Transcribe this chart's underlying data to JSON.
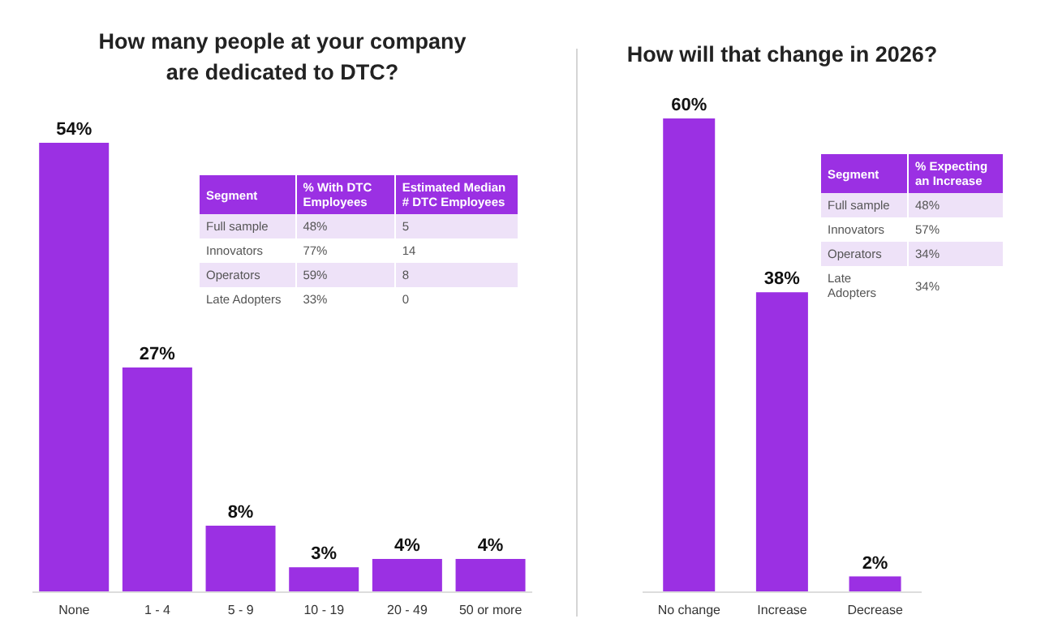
{
  "chart_data": [
    {
      "type": "bar",
      "title": "How many people at your company are dedicated to DTC?",
      "categories": [
        "None",
        "1 - 4",
        "5 - 9",
        "10 - 19",
        "20 - 49",
        "50 or more"
      ],
      "values": [
        54,
        27,
        8,
        3,
        4,
        4
      ],
      "value_labels": [
        "54%",
        "27%",
        "8%",
        "3%",
        "4%",
        "4%"
      ],
      "color": "#9b30e3",
      "tick_labels": "x",
      "grid": false,
      "legend": false
    },
    {
      "type": "other",
      "xlabel": "Segment",
      "categories": [
        "Full sample",
        "Innovators",
        "Operators",
        "Late Adopters"
      ],
      "series": [
        {
          "name": "% With DTC Employees",
          "values": [
            48,
            77,
            59,
            33
          ],
          "value_labels": [
            "48%",
            "77%",
            "59%",
            "33%"
          ],
          "colors": [
            "#eee2f8",
            "#ffffff",
            "#eee2f8",
            "#ffffff"
          ]
        },
        {
          "name": "Estimated  Median # DTC Employees",
          "values": [
            5,
            14,
            8,
            0
          ],
          "colors": [
            "#eee2f8",
            "#ffffff",
            "#eee2f8",
            "#ffffff"
          ]
        }
      ],
      "data_labels": true
    },
    {
      "type": "bar",
      "title": "How will that change in 2026?",
      "categories": [
        "No change",
        "Increase",
        "Decrease"
      ],
      "values": [
        60,
        38,
        2
      ],
      "value_labels": [
        "60%",
        "38%",
        "2%"
      ],
      "color": "#9b30e3",
      "tick_labels": "x",
      "grid": false,
      "legend": false
    },
    {
      "type": "other",
      "xlabel": "Segment",
      "categories": [
        "Full sample",
        "Innovators",
        "Operators",
        "Late Adopters"
      ],
      "series": [
        {
          "name": "% Expecting an Increase",
          "values": [
            48,
            57,
            34,
            34
          ],
          "value_labels": [
            "48%",
            "57%",
            "34%",
            "34%"
          ],
          "colors": [
            "#eee2f8",
            "#ffffff",
            "#eee2f8",
            "#ffffff"
          ]
        }
      ]
    }
  ]
}
